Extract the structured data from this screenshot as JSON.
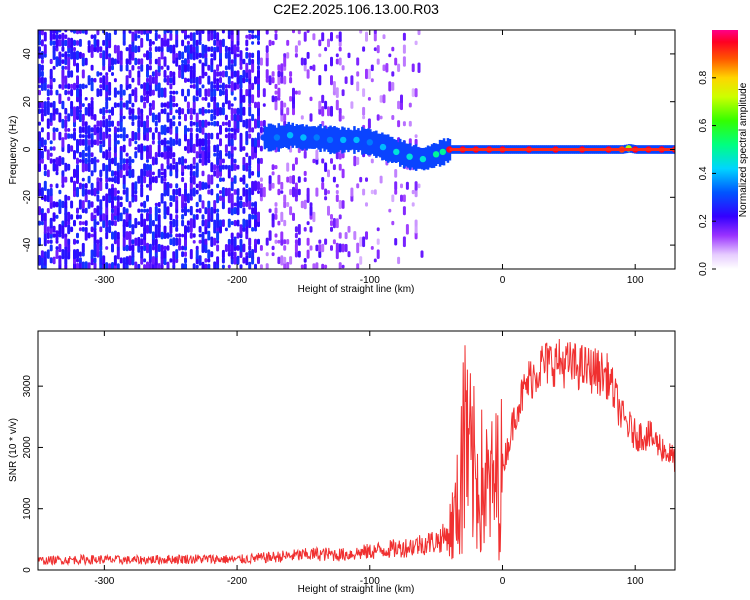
{
  "title": "C2E2.2025.106.13.00.R03",
  "colors": {
    "snr_line": "#f03030",
    "spectrum_ridge": "#ff2a1a",
    "background": "#ffffff"
  },
  "chart_data": [
    {
      "type": "heatmap",
      "xlabel": "Height of straight line (km)",
      "ylabel": "Frequency (Hz)",
      "xlim": [
        -350,
        130
      ],
      "ylim": [
        -50,
        50
      ],
      "x_ticks": [
        -300,
        -200,
        -100,
        0,
        100
      ],
      "x_tick_labels": [
        "-300",
        "-200",
        "-100",
        "0",
        "100"
      ],
      "y_ticks": [
        -40,
        -20,
        0,
        20,
        40
      ],
      "y_tick_labels": [
        "-40",
        "-20",
        "0",
        "20",
        "40"
      ],
      "colorbar": {
        "label": "Normalized spectral amplitude",
        "range": [
          0,
          1
        ],
        "ticks": [
          0.0,
          0.2,
          0.4,
          0.6,
          0.8
        ],
        "tick_labels": [
          "0.0",
          "0.2",
          "0.4",
          "0.6",
          "0.8"
        ],
        "colormap": "rainbow (white-violet-blue-cyan-green-yellow-red-magenta)"
      },
      "noise_region_x": [
        -350,
        -60
      ],
      "ridge": {
        "x": [
          -180,
          -170,
          -160,
          -150,
          -140,
          -130,
          -120,
          -110,
          -100,
          -90,
          -80,
          -70,
          -60,
          -50,
          -45,
          -40,
          -30,
          -20,
          -10,
          0,
          20,
          40,
          60,
          80,
          90,
          95,
          100,
          110,
          120,
          130
        ],
        "frequency": [
          5,
          5,
          6,
          5,
          5,
          4,
          4,
          4,
          3,
          1,
          -1,
          -3,
          -4,
          -2,
          -1,
          0,
          0,
          0,
          0,
          0,
          0,
          0,
          0,
          0,
          0,
          0.5,
          0,
          0,
          0,
          0
        ],
        "amplitude": [
          0.3,
          0.35,
          0.4,
          0.4,
          0.35,
          0.35,
          0.4,
          0.4,
          0.35,
          0.4,
          0.45,
          0.45,
          0.45,
          0.5,
          0.5,
          0.95,
          0.95,
          0.95,
          0.95,
          0.95,
          0.95,
          0.95,
          0.95,
          0.95,
          0.9,
          0.7,
          0.95,
          0.95,
          0.95,
          0.95
        ]
      }
    },
    {
      "type": "line",
      "xlabel": "Height of straight line (km)",
      "ylabel": "SNR (10 * v/v)",
      "xlim": [
        -350,
        130
      ],
      "ylim": [
        0,
        3900
      ],
      "x_ticks": [
        -300,
        -200,
        -100,
        0,
        100
      ],
      "x_tick_labels": [
        "-300",
        "-200",
        "-100",
        "0",
        "100"
      ],
      "y_ticks": [
        0,
        1000,
        2000,
        3000
      ],
      "y_tick_labels": [
        "0",
        "1000",
        "2000",
        "3000"
      ],
      "series": [
        {
          "x": [
            -350,
            -320,
            -300,
            -280,
            -260,
            -240,
            -220,
            -200,
            -180,
            -160,
            -140,
            -120,
            -100,
            -90,
            -80,
            -70,
            -60,
            -50,
            -45,
            -40,
            -35,
            -30,
            -27,
            -25,
            -20,
            -15,
            -10,
            -5,
            0,
            5,
            10,
            20,
            30,
            40,
            50,
            60,
            70,
            80,
            90,
            100,
            110,
            120,
            130
          ],
          "y": [
            150,
            170,
            170,
            160,
            170,
            180,
            180,
            170,
            200,
            230,
            260,
            250,
            300,
            330,
            350,
            380,
            430,
            470,
            520,
            600,
            900,
            1600,
            2300,
            1800,
            1500,
            1400,
            1300,
            1400,
            1700,
            2100,
            2600,
            3100,
            3350,
            3400,
            3350,
            3300,
            3250,
            3150,
            2500,
            2200,
            2200,
            2000,
            1800
          ]
        }
      ]
    }
  ]
}
